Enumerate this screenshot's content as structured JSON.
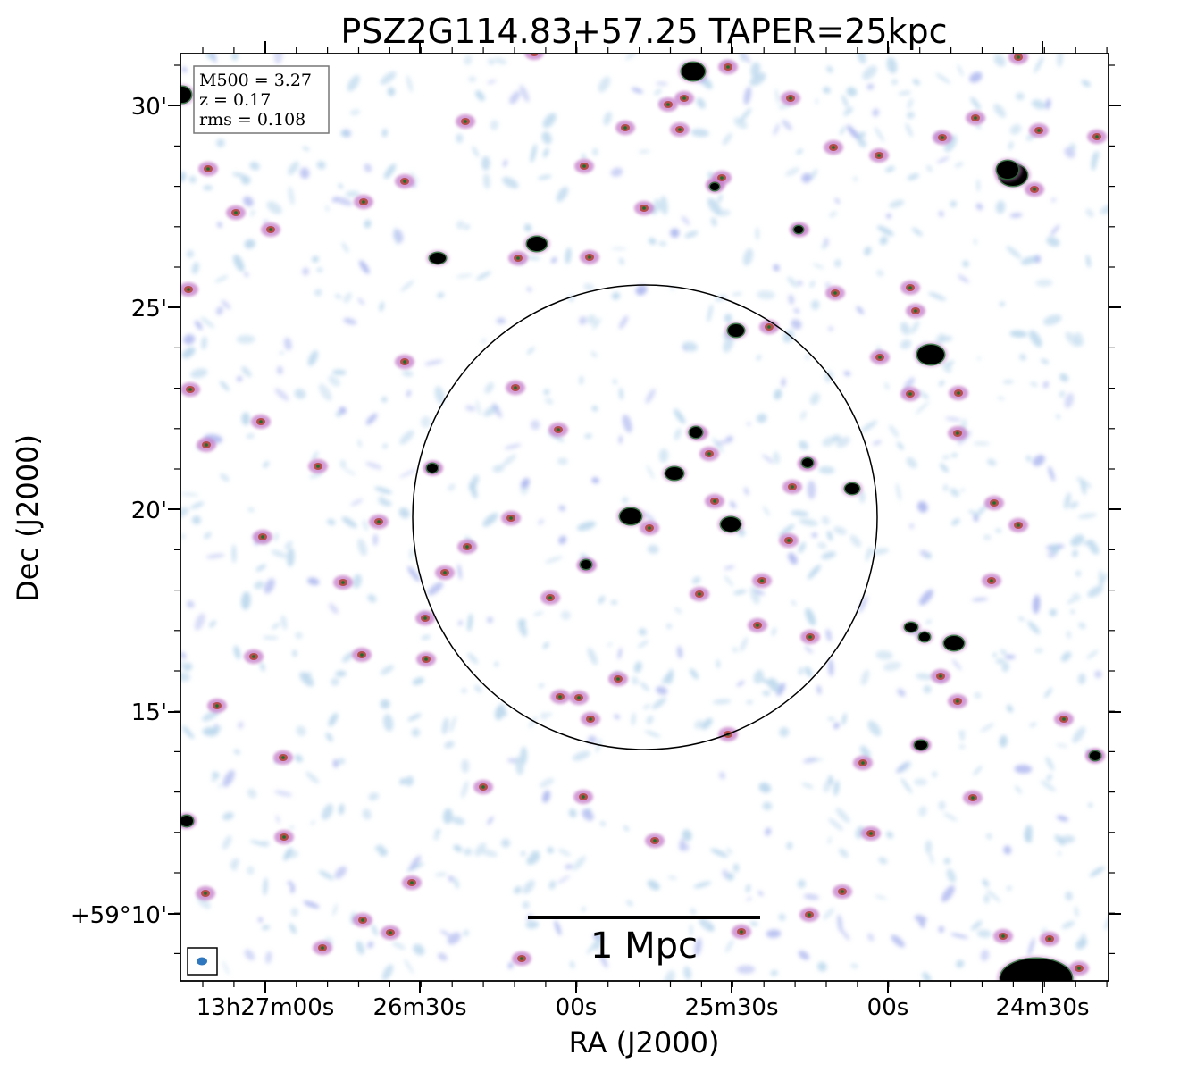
{
  "title": "PSZ2G114.83+57.25 TAPER=25kpc",
  "x_axis_label": "RA (J2000)",
  "y_axis_label": "Dec (J2000)",
  "ra_ticks": [
    "13h27m00s",
    "26m30s",
    "00s",
    "25m30s",
    "00s",
    "24m30s"
  ],
  "dec_ticks": [
    "30'",
    "25'",
    "20'",
    "15'",
    "+59°10'"
  ],
  "info_box": {
    "m500": "M500 = 3.27",
    "z": "z = 0.17",
    "rms": "rms = 0.108"
  },
  "scale_bar_label": "1 Mpc",
  "colors": {
    "noise_light": "#b9d6ec",
    "noise_blue": "#aab4ee",
    "source_magenta": "#c47ac8",
    "source_red": "#b0463c",
    "source_core": "#1f6b2c",
    "compact_source": "#000000",
    "beam": "#2f77bf"
  }
}
